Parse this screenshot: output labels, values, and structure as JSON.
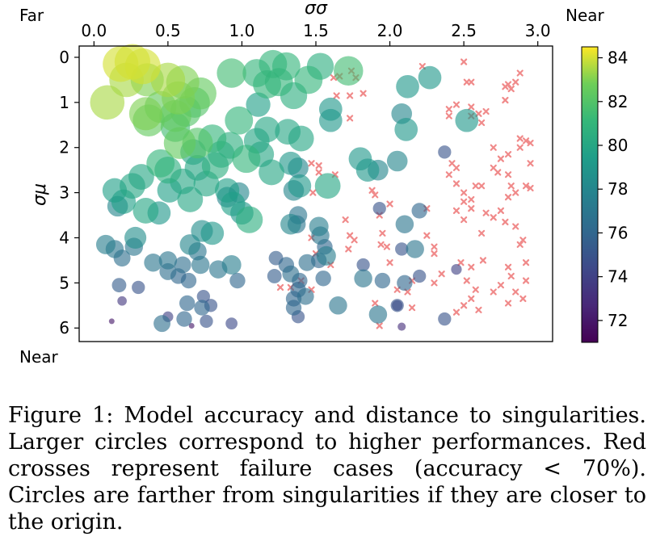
{
  "caption": "Figure 1: Model accuracy and distance to singularities. Larger circles correspond to higher performances. Red crosses represent failure cases (accuracy < 70%). Circles are farther from singularities if they are closer to the origin.",
  "colors": {
    "failure": "#f08a8a"
  },
  "chart_data": {
    "type": "scatter",
    "xlabel": "σσ",
    "ylabel": "σμ",
    "x_axis_position": "top",
    "y_axis_inverted": true,
    "xlim": [
      -0.1,
      3.1
    ],
    "ylim": [
      -0.25,
      6.3
    ],
    "xticks": [
      "0.0",
      "0.5",
      "1.0",
      "1.5",
      "2.0",
      "2.5",
      "3.0"
    ],
    "yticks": [
      "0",
      "1",
      "2",
      "3",
      "4",
      "5",
      "6"
    ],
    "corner_labels": {
      "top_left": "Far",
      "top_right": "Near",
      "bottom_left": "Near"
    },
    "grid": false,
    "colorbar": {
      "min": 71,
      "max": 84.5,
      "colormap": "viridis",
      "ticks": [
        "72",
        "74",
        "76",
        "78",
        "80",
        "82",
        "84"
      ]
    },
    "circles": [
      {
        "x": 0.18,
        "y": 0.15,
        "acc": 84
      },
      {
        "x": 0.26,
        "y": 0.1,
        "acc": 84
      },
      {
        "x": 0.33,
        "y": 0.2,
        "acc": 84
      },
      {
        "x": 0.22,
        "y": 0.5,
        "acc": 83.5
      },
      {
        "x": 0.36,
        "y": 0.5,
        "acc": 83
      },
      {
        "x": 0.09,
        "y": 1.0,
        "acc": 83.5
      },
      {
        "x": 0.5,
        "y": 0.5,
        "acc": 83.5
      },
      {
        "x": 0.6,
        "y": 0.55,
        "acc": 83
      },
      {
        "x": 0.57,
        "y": 0.9,
        "acc": 83
      },
      {
        "x": 0.72,
        "y": 0.8,
        "acc": 82.5
      },
      {
        "x": 0.45,
        "y": 1.1,
        "acc": 82.5
      },
      {
        "x": 0.35,
        "y": 1.25,
        "acc": 83
      },
      {
        "x": 0.37,
        "y": 1.4,
        "acc": 82.5
      },
      {
        "x": 0.55,
        "y": 1.3,
        "acc": 82.5
      },
      {
        "x": 0.62,
        "y": 1.2,
        "acc": 82
      },
      {
        "x": 0.68,
        "y": 1.0,
        "acc": 82
      },
      {
        "x": 0.55,
        "y": 1.55,
        "acc": 81.5
      },
      {
        "x": 0.58,
        "y": 1.9,
        "acc": 82.5
      },
      {
        "x": 0.7,
        "y": 1.9,
        "acc": 82
      },
      {
        "x": 0.93,
        "y": 0.35,
        "acc": 81.5
      },
      {
        "x": 1.1,
        "y": 0.35,
        "acc": 81
      },
      {
        "x": 1.21,
        "y": 0.15,
        "acc": 81
      },
      {
        "x": 1.3,
        "y": 0.2,
        "acc": 81
      },
      {
        "x": 1.17,
        "y": 0.6,
        "acc": 81
      },
      {
        "x": 1.25,
        "y": 0.55,
        "acc": 81
      },
      {
        "x": 1.45,
        "y": 0.5,
        "acc": 81
      },
      {
        "x": 1.53,
        "y": 0.2,
        "acc": 80.5
      },
      {
        "x": 1.72,
        "y": 0.3,
        "acc": 81.5
      },
      {
        "x": 1.35,
        "y": 0.85,
        "acc": 80.5
      },
      {
        "x": 1.11,
        "y": 1.05,
        "acc": 79.5
      },
      {
        "x": 0.98,
        "y": 1.4,
        "acc": 81
      },
      {
        "x": 1.17,
        "y": 1.6,
        "acc": 80
      },
      {
        "x": 1.31,
        "y": 1.65,
        "acc": 80
      },
      {
        "x": 1.4,
        "y": 1.8,
        "acc": 80
      },
      {
        "x": 1.1,
        "y": 1.85,
        "acc": 80
      },
      {
        "x": 0.8,
        "y": 1.8,
        "acc": 81
      },
      {
        "x": 0.67,
        "y": 2.1,
        "acc": 80
      },
      {
        "x": 0.86,
        "y": 2.15,
        "acc": 80.5
      },
      {
        "x": 0.92,
        "y": 1.95,
        "acc": 80.5
      },
      {
        "x": 1.03,
        "y": 2.25,
        "acc": 81
      },
      {
        "x": 1.13,
        "y": 2.15,
        "acc": 80
      },
      {
        "x": 0.45,
        "y": 2.35,
        "acc": 81
      },
      {
        "x": 0.5,
        "y": 2.5,
        "acc": 80.5
      },
      {
        "x": 0.7,
        "y": 2.45,
        "acc": 80
      },
      {
        "x": 0.82,
        "y": 2.4,
        "acc": 80.5
      },
      {
        "x": 0.32,
        "y": 2.65,
        "acc": 80
      },
      {
        "x": 0.26,
        "y": 2.85,
        "acc": 80
      },
      {
        "x": 0.14,
        "y": 2.95,
        "acc": 79.5
      },
      {
        "x": 0.51,
        "y": 2.95,
        "acc": 79.5
      },
      {
        "x": 0.6,
        "y": 2.75,
        "acc": 80
      },
      {
        "x": 0.65,
        "y": 3.15,
        "acc": 80
      },
      {
        "x": 0.76,
        "y": 2.8,
        "acc": 80
      },
      {
        "x": 0.35,
        "y": 3.4,
        "acc": 80
      },
      {
        "x": 0.2,
        "y": 3.2,
        "acc": 79.5
      },
      {
        "x": 0.9,
        "y": 2.95,
        "acc": 79.5
      },
      {
        "x": 0.94,
        "y": 3.25,
        "acc": 79.5
      },
      {
        "x": 1.05,
        "y": 3.6,
        "acc": 80.5
      },
      {
        "x": 1.0,
        "y": 3.45,
        "acc": 79
      },
      {
        "x": 1.2,
        "y": 2.55,
        "acc": 80
      },
      {
        "x": 1.33,
        "y": 2.35,
        "acc": 79
      },
      {
        "x": 1.38,
        "y": 2.45,
        "acc": 78
      },
      {
        "x": 1.35,
        "y": 2.95,
        "acc": 78
      },
      {
        "x": 1.39,
        "y": 2.85,
        "acc": 79
      },
      {
        "x": 1.58,
        "y": 2.85,
        "acc": 80
      },
      {
        "x": 1.6,
        "y": 1.4,
        "acc": 79
      },
      {
        "x": 1.6,
        "y": 1.15,
        "acc": 79
      },
      {
        "x": 1.8,
        "y": 2.25,
        "acc": 79
      },
      {
        "x": 1.85,
        "y": 2.5,
        "acc": 79
      },
      {
        "x": 1.92,
        "y": 2.5,
        "acc": 78
      },
      {
        "x": 2.05,
        "y": 2.3,
        "acc": 78
      },
      {
        "x": 2.12,
        "y": 0.65,
        "acc": 79
      },
      {
        "x": 2.27,
        "y": 0.45,
        "acc": 79
      },
      {
        "x": 2.08,
        "y": 1.25,
        "acc": 78
      },
      {
        "x": 2.11,
        "y": 1.6,
        "acc": 79
      },
      {
        "x": 2.52,
        "y": 1.4,
        "acc": 79
      },
      {
        "x": 0.16,
        "y": 3.3,
        "acc": 78
      },
      {
        "x": 0.44,
        "y": 3.45,
        "acc": 79
      },
      {
        "x": 0.73,
        "y": 3.85,
        "acc": 78.5
      },
      {
        "x": 0.8,
        "y": 3.9,
        "acc": 79
      },
      {
        "x": 0.65,
        "y": 4.15,
        "acc": 78
      },
      {
        "x": 0.7,
        "y": 4.3,
        "acc": 77
      },
      {
        "x": 0.08,
        "y": 4.15,
        "acc": 77.5
      },
      {
        "x": 0.14,
        "y": 4.25,
        "acc": 77
      },
      {
        "x": 0.28,
        "y": 4.0,
        "acc": 78.5
      },
      {
        "x": 0.27,
        "y": 4.2,
        "acc": 77
      },
      {
        "x": 0.19,
        "y": 4.45,
        "acc": 76.5
      },
      {
        "x": 0.5,
        "y": 4.5,
        "acc": 77
      },
      {
        "x": 0.4,
        "y": 4.55,
        "acc": 77
      },
      {
        "x": 0.6,
        "y": 4.6,
        "acc": 76.5
      },
      {
        "x": 0.72,
        "y": 4.6,
        "acc": 77
      },
      {
        "x": 0.5,
        "y": 4.75,
        "acc": 76.5
      },
      {
        "x": 0.57,
        "y": 4.85,
        "acc": 76
      },
      {
        "x": 0.64,
        "y": 4.95,
        "acc": 76
      },
      {
        "x": 0.84,
        "y": 4.7,
        "acc": 77
      },
      {
        "x": 0.93,
        "y": 4.6,
        "acc": 77.5
      },
      {
        "x": 0.97,
        "y": 4.95,
        "acc": 76
      },
      {
        "x": 0.9,
        "y": 3.1,
        "acc": 78
      },
      {
        "x": 0.98,
        "y": 3.0,
        "acc": 78
      },
      {
        "x": 1.33,
        "y": 3.7,
        "acc": 78
      },
      {
        "x": 1.37,
        "y": 3.7,
        "acc": 77
      },
      {
        "x": 1.38,
        "y": 3.5,
        "acc": 77
      },
      {
        "x": 1.52,
        "y": 3.75,
        "acc": 77.5
      },
      {
        "x": 1.53,
        "y": 3.95,
        "acc": 77
      },
      {
        "x": 1.56,
        "y": 4.2,
        "acc": 76
      },
      {
        "x": 1.57,
        "y": 4.4,
        "acc": 77.5
      },
      {
        "x": 1.52,
        "y": 4.5,
        "acc": 76
      },
      {
        "x": 1.44,
        "y": 4.55,
        "acc": 76.5
      },
      {
        "x": 1.55,
        "y": 4.9,
        "acc": 76
      },
      {
        "x": 1.33,
        "y": 4.8,
        "acc": 76.5
      },
      {
        "x": 1.39,
        "y": 4.95,
        "acc": 76
      },
      {
        "x": 1.38,
        "y": 5.15,
        "acc": 76
      },
      {
        "x": 1.35,
        "y": 5.35,
        "acc": 76
      },
      {
        "x": 1.35,
        "y": 5.55,
        "acc": 76
      },
      {
        "x": 1.38,
        "y": 5.75,
        "acc": 75
      },
      {
        "x": 1.3,
        "y": 4.6,
        "acc": 76
      },
      {
        "x": 1.23,
        "y": 4.45,
        "acc": 75.5
      },
      {
        "x": 1.22,
        "y": 4.85,
        "acc": 75.5
      },
      {
        "x": 1.43,
        "y": 5.3,
        "acc": 76.5
      },
      {
        "x": 1.65,
        "y": 5.5,
        "acc": 77
      },
      {
        "x": 1.82,
        "y": 4.9,
        "acc": 77
      },
      {
        "x": 1.82,
        "y": 4.6,
        "acc": 75
      },
      {
        "x": 1.93,
        "y": 3.35,
        "acc": 75
      },
      {
        "x": 1.92,
        "y": 5.7,
        "acc": 77
      },
      {
        "x": 2.05,
        "y": 5.5,
        "acc": 74
      },
      {
        "x": 2.08,
        "y": 5.97,
        "acc": 73
      },
      {
        "x": 2.05,
        "y": 5.5,
        "acc": 75
      },
      {
        "x": 2.08,
        "y": 4.25,
        "acc": 75
      },
      {
        "x": 2.1,
        "y": 3.7,
        "acc": 77
      },
      {
        "x": 2.17,
        "y": 4.25,
        "acc": 77
      },
      {
        "x": 2.2,
        "y": 3.4,
        "acc": 76
      },
      {
        "x": 2.1,
        "y": 5.0,
        "acc": 76
      },
      {
        "x": 2.2,
        "y": 4.85,
        "acc": 75
      },
      {
        "x": 1.95,
        "y": 4.95,
        "acc": 76
      },
      {
        "x": 2.37,
        "y": 2.1,
        "acc": 75
      },
      {
        "x": 2.37,
        "y": 5.8,
        "acc": 75
      },
      {
        "x": 2.45,
        "y": 4.7,
        "acc": 74
      },
      {
        "x": 0.17,
        "y": 5.05,
        "acc": 75.5
      },
      {
        "x": 0.3,
        "y": 5.1,
        "acc": 75
      },
      {
        "x": 0.19,
        "y": 5.4,
        "acc": 73.5
      },
      {
        "x": 0.12,
        "y": 5.85,
        "acc": 72
      },
      {
        "x": 0.63,
        "y": 5.45,
        "acc": 76
      },
      {
        "x": 0.74,
        "y": 5.3,
        "acc": 75
      },
      {
        "x": 0.73,
        "y": 5.55,
        "acc": 76
      },
      {
        "x": 0.79,
        "y": 5.5,
        "acc": 75
      },
      {
        "x": 0.76,
        "y": 5.85,
        "acc": 75
      },
      {
        "x": 0.61,
        "y": 5.8,
        "acc": 76
      },
      {
        "x": 0.46,
        "y": 5.9,
        "acc": 76.5
      },
      {
        "x": 0.5,
        "y": 5.75,
        "acc": 74
      },
      {
        "x": 0.66,
        "y": 5.95,
        "acc": 72
      },
      {
        "x": 0.93,
        "y": 5.9,
        "acc": 74.5
      }
    ],
    "failures": [
      {
        "x": 1.62,
        "y": 0.45
      },
      {
        "x": 1.66,
        "y": 0.42
      },
      {
        "x": 1.74,
        "y": 0.3
      },
      {
        "x": 1.77,
        "y": 0.45
      },
      {
        "x": 1.64,
        "y": 0.85
      },
      {
        "x": 1.73,
        "y": 0.85
      },
      {
        "x": 1.73,
        "y": 1.35
      },
      {
        "x": 1.82,
        "y": 0.8
      },
      {
        "x": 1.52,
        "y": 2.4
      },
      {
        "x": 1.52,
        "y": 2.55
      },
      {
        "x": 1.47,
        "y": 2.35
      },
      {
        "x": 1.48,
        "y": 3.0
      },
      {
        "x": 1.63,
        "y": 2.6
      },
      {
        "x": 1.47,
        "y": 4.0
      },
      {
        "x": 1.5,
        "y": 4.35
      },
      {
        "x": 1.6,
        "y": 4.6
      },
      {
        "x": 1.4,
        "y": 4.95
      },
      {
        "x": 1.47,
        "y": 5.15
      },
      {
        "x": 1.33,
        "y": 5.1
      },
      {
        "x": 1.26,
        "y": 5.1
      },
      {
        "x": 1.7,
        "y": 3.6
      },
      {
        "x": 1.73,
        "y": 3.95
      },
      {
        "x": 1.72,
        "y": 4.25
      },
      {
        "x": 1.76,
        "y": 4.05
      },
      {
        "x": 1.88,
        "y": 2.95
      },
      {
        "x": 1.9,
        "y": 3.05
      },
      {
        "x": 1.93,
        "y": 3.5
      },
      {
        "x": 1.95,
        "y": 3.9
      },
      {
        "x": 1.94,
        "y": 4.15
      },
      {
        "x": 1.98,
        "y": 4.2
      },
      {
        "x": 1.9,
        "y": 5.45
      },
      {
        "x": 1.93,
        "y": 5.95
      },
      {
        "x": 2.0,
        "y": 3.25
      },
      {
        "x": 2.0,
        "y": 4.55
      },
      {
        "x": 2.05,
        "y": 5.15
      },
      {
        "x": 2.12,
        "y": 5.2
      },
      {
        "x": 2.15,
        "y": 4.95
      },
      {
        "x": 2.15,
        "y": 5.55
      },
      {
        "x": 2.25,
        "y": 3.35
      },
      {
        "x": 2.25,
        "y": 3.95
      },
      {
        "x": 2.3,
        "y": 4.2
      },
      {
        "x": 2.3,
        "y": 4.35
      },
      {
        "x": 2.35,
        "y": 4.8
      },
      {
        "x": 2.3,
        "y": 5.0
      },
      {
        "x": 2.22,
        "y": 0.2
      },
      {
        "x": 2.4,
        "y": 1.15
      },
      {
        "x": 2.45,
        "y": 1.05
      },
      {
        "x": 2.4,
        "y": 1.3
      },
      {
        "x": 2.42,
        "y": 2.35
      },
      {
        "x": 2.45,
        "y": 2.45
      },
      {
        "x": 2.45,
        "y": 2.8
      },
      {
        "x": 2.4,
        "y": 2.6
      },
      {
        "x": 2.5,
        "y": 0.1
      },
      {
        "x": 2.52,
        "y": 0.55
      },
      {
        "x": 2.55,
        "y": 0.55
      },
      {
        "x": 2.55,
        "y": 1.1
      },
      {
        "x": 2.55,
        "y": 1.3
      },
      {
        "x": 2.6,
        "y": 1.25
      },
      {
        "x": 2.62,
        "y": 1.45
      },
      {
        "x": 2.65,
        "y": 1.2
      },
      {
        "x": 2.5,
        "y": 3.0
      },
      {
        "x": 2.5,
        "y": 3.2
      },
      {
        "x": 2.55,
        "y": 3.15
      },
      {
        "x": 2.58,
        "y": 2.85
      },
      {
        "x": 2.62,
        "y": 2.85
      },
      {
        "x": 2.55,
        "y": 3.35
      },
      {
        "x": 2.45,
        "y": 3.4
      },
      {
        "x": 2.5,
        "y": 3.6
      },
      {
        "x": 2.48,
        "y": 4.55
      },
      {
        "x": 2.52,
        "y": 4.95
      },
      {
        "x": 2.55,
        "y": 4.65
      },
      {
        "x": 2.55,
        "y": 5.35
      },
      {
        "x": 2.5,
        "y": 5.5
      },
      {
        "x": 2.45,
        "y": 5.65
      },
      {
        "x": 2.58,
        "y": 5.15
      },
      {
        "x": 2.63,
        "y": 4.5
      },
      {
        "x": 2.65,
        "y": 3.45
      },
      {
        "x": 2.62,
        "y": 3.9
      },
      {
        "x": 2.7,
        "y": 3.55
      },
      {
        "x": 2.75,
        "y": 3.4
      },
      {
        "x": 2.7,
        "y": 2.45
      },
      {
        "x": 2.75,
        "y": 2.25
      },
      {
        "x": 2.73,
        "y": 2.55
      },
      {
        "x": 2.7,
        "y": 2.0
      },
      {
        "x": 2.78,
        "y": 0.65
      },
      {
        "x": 2.8,
        "y": 0.6
      },
      {
        "x": 2.82,
        "y": 0.7
      },
      {
        "x": 2.78,
        "y": 0.95
      },
      {
        "x": 2.85,
        "y": 0.55
      },
      {
        "x": 2.88,
        "y": 0.35
      },
      {
        "x": 2.8,
        "y": 2.15
      },
      {
        "x": 2.8,
        "y": 2.6
      },
      {
        "x": 2.82,
        "y": 2.85
      },
      {
        "x": 2.85,
        "y": 3.0
      },
      {
        "x": 2.8,
        "y": 3.1
      },
      {
        "x": 2.78,
        "y": 3.65
      },
      {
        "x": 2.85,
        "y": 3.75
      },
      {
        "x": 2.88,
        "y": 4.15
      },
      {
        "x": 2.9,
        "y": 4.05
      },
      {
        "x": 2.92,
        "y": 4.55
      },
      {
        "x": 2.8,
        "y": 4.65
      },
      {
        "x": 2.82,
        "y": 4.85
      },
      {
        "x": 2.75,
        "y": 5.05
      },
      {
        "x": 2.85,
        "y": 5.2
      },
      {
        "x": 2.9,
        "y": 5.35
      },
      {
        "x": 2.8,
        "y": 5.45
      },
      {
        "x": 2.92,
        "y": 4.95
      },
      {
        "x": 2.88,
        "y": 1.8
      },
      {
        "x": 2.92,
        "y": 1.85
      },
      {
        "x": 2.95,
        "y": 1.9
      },
      {
        "x": 2.88,
        "y": 2.0
      },
      {
        "x": 2.95,
        "y": 2.35
      },
      {
        "x": 2.92,
        "y": 2.85
      },
      {
        "x": 2.95,
        "y": 2.9
      },
      {
        "x": 2.6,
        "y": 5.6
      },
      {
        "x": 2.7,
        "y": 5.2
      }
    ]
  }
}
